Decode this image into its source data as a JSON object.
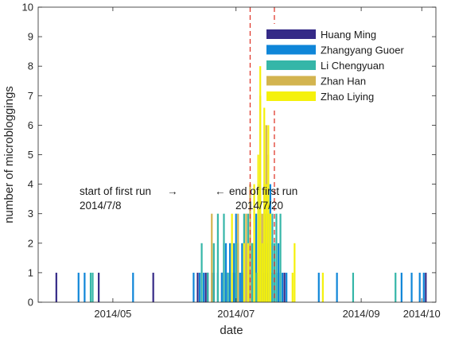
{
  "chart_data": {
    "type": "bar",
    "xlabel": "date",
    "ylabel": "number of microbloggings",
    "ylim": [
      0,
      10
    ],
    "xlim": [
      "2014-03-25",
      "2014-10-08"
    ],
    "x_ticks": [
      "2014/05",
      "2014/07",
      "2014/09",
      "2014/10"
    ],
    "x_tick_dates": [
      "2014-05-01",
      "2014-07-01",
      "2014-09-01",
      "2014-10-01"
    ],
    "y_ticks": [
      0,
      1,
      2,
      3,
      4,
      5,
      6,
      7,
      8,
      9,
      10
    ],
    "grid": false,
    "legend_position": "top-right",
    "stacked": false,
    "series": [
      {
        "name": "Huang Ming",
        "color": "#352a87",
        "points": [
          [
            "2014-04-03",
            1
          ],
          [
            "2014-04-24",
            1
          ],
          [
            "2014-05-21",
            1
          ],
          [
            "2014-06-12",
            1
          ],
          [
            "2014-06-16",
            1
          ],
          [
            "2014-06-17",
            1
          ],
          [
            "2014-06-20",
            1
          ],
          [
            "2014-06-24",
            1
          ],
          [
            "2014-06-26",
            1
          ],
          [
            "2014-06-30",
            1
          ],
          [
            "2014-07-04",
            1
          ],
          [
            "2014-07-08",
            1
          ],
          [
            "2014-07-11",
            1
          ],
          [
            "2014-07-15",
            1
          ],
          [
            "2014-07-17",
            1
          ],
          [
            "2014-07-19",
            1
          ],
          [
            "2014-07-22",
            1
          ],
          [
            "2014-07-25",
            1
          ],
          [
            "2014-10-03",
            1
          ]
        ]
      },
      {
        "name": "Zhangyang Guoer",
        "color": "#0f86d8",
        "points": [
          [
            "2014-04-14",
            1
          ],
          [
            "2014-04-17",
            1
          ],
          [
            "2014-05-11",
            1
          ],
          [
            "2014-06-10",
            1
          ],
          [
            "2014-06-13",
            1
          ],
          [
            "2014-06-15",
            1
          ],
          [
            "2014-06-19",
            1
          ],
          [
            "2014-06-22",
            1
          ],
          [
            "2014-06-24",
            1
          ],
          [
            "2014-06-25",
            2
          ],
          [
            "2014-06-26",
            2
          ],
          [
            "2014-06-27",
            1
          ],
          [
            "2014-06-28",
            2
          ],
          [
            "2014-06-29",
            1
          ],
          [
            "2014-06-30",
            2
          ],
          [
            "2014-07-01",
            3
          ],
          [
            "2014-07-02",
            2
          ],
          [
            "2014-07-03",
            1
          ],
          [
            "2014-07-04",
            2
          ],
          [
            "2014-07-05",
            1
          ],
          [
            "2014-07-06",
            2
          ],
          [
            "2014-07-07",
            2
          ],
          [
            "2014-07-08",
            2
          ],
          [
            "2014-07-09",
            2
          ],
          [
            "2014-07-10",
            2
          ],
          [
            "2014-07-11",
            3
          ],
          [
            "2014-07-12",
            4
          ],
          [
            "2014-07-13",
            3
          ],
          [
            "2014-07-14",
            2
          ],
          [
            "2014-07-15",
            3
          ],
          [
            "2014-07-16",
            2
          ],
          [
            "2014-07-17",
            3
          ],
          [
            "2014-07-18",
            4
          ],
          [
            "2014-07-19",
            2
          ],
          [
            "2014-07-20",
            1
          ],
          [
            "2014-07-21",
            1
          ],
          [
            "2014-07-22",
            2
          ],
          [
            "2014-07-24",
            1
          ],
          [
            "2014-07-26",
            1
          ],
          [
            "2014-08-11",
            1
          ],
          [
            "2014-08-20",
            1
          ],
          [
            "2014-09-21",
            1
          ],
          [
            "2014-09-26",
            1
          ],
          [
            "2014-09-30",
            1
          ],
          [
            "2014-10-02",
            1
          ],
          [
            "2014-10-12",
            1
          ]
        ]
      },
      {
        "name": "Li Chengyuan",
        "color": "#35b6a8",
        "points": [
          [
            "2014-04-20",
            1
          ],
          [
            "2014-04-21",
            1
          ],
          [
            "2014-06-14",
            2
          ],
          [
            "2014-06-17",
            1
          ],
          [
            "2014-06-20",
            2
          ],
          [
            "2014-06-22",
            3
          ],
          [
            "2014-06-25",
            3
          ],
          [
            "2014-06-27",
            1
          ],
          [
            "2014-07-01",
            2
          ],
          [
            "2014-07-05",
            3
          ],
          [
            "2014-07-07",
            3
          ],
          [
            "2014-07-09",
            2
          ],
          [
            "2014-07-11",
            1
          ],
          [
            "2014-07-14",
            2
          ],
          [
            "2014-07-16",
            3
          ],
          [
            "2014-07-17",
            2
          ],
          [
            "2014-07-19",
            3
          ],
          [
            "2014-07-20",
            2
          ],
          [
            "2014-07-21",
            3
          ],
          [
            "2014-07-23",
            3
          ],
          [
            "2014-08-28",
            1
          ],
          [
            "2014-09-18",
            1
          ]
        ]
      },
      {
        "name": "Zhan Han",
        "color": "#d3b44f",
        "points": [
          [
            "2014-06-19",
            3
          ],
          [
            "2014-07-02",
            3
          ],
          [
            "2014-07-06",
            3
          ],
          [
            "2014-07-08",
            4
          ],
          [
            "2014-07-10",
            3
          ],
          [
            "2014-07-12",
            3
          ],
          [
            "2014-07-13",
            7
          ],
          [
            "2014-07-14",
            3
          ],
          [
            "2014-07-15",
            4
          ],
          [
            "2014-07-16",
            6
          ],
          [
            "2014-07-17",
            5
          ],
          [
            "2014-07-18",
            3
          ]
        ]
      },
      {
        "name": "Zhao Liying",
        "color": "#f5f10b",
        "points": [
          [
            "2014-06-29",
            3
          ],
          [
            "2014-07-05",
            2
          ],
          [
            "2014-07-07",
            2
          ],
          [
            "2014-07-10",
            4
          ],
          [
            "2014-07-12",
            5
          ],
          [
            "2014-07-13",
            8
          ],
          [
            "2014-07-14",
            2
          ],
          [
            "2014-07-15",
            9
          ],
          [
            "2014-07-16",
            4
          ],
          [
            "2014-07-17",
            6
          ],
          [
            "2014-07-18",
            3
          ],
          [
            "2014-07-29",
            1
          ],
          [
            "2014-07-30",
            2
          ],
          [
            "2014-08-13",
            1
          ]
        ]
      }
    ],
    "reference_lines": [
      {
        "date": "2014-07-08",
        "color": "#e03a2e",
        "style": "dashed"
      },
      {
        "date": "2014-07-20",
        "color": "#e03a2e",
        "style": "dashed"
      }
    ],
    "annotations": [
      {
        "lines": [
          "start of first run",
          "2014/7/8"
        ],
        "arrow": "→",
        "target_date": "2014-07-08"
      },
      {
        "lines": [
          "end of first run",
          "2014/7/20"
        ],
        "arrow": "←",
        "target_date": "2014-07-20"
      }
    ]
  }
}
